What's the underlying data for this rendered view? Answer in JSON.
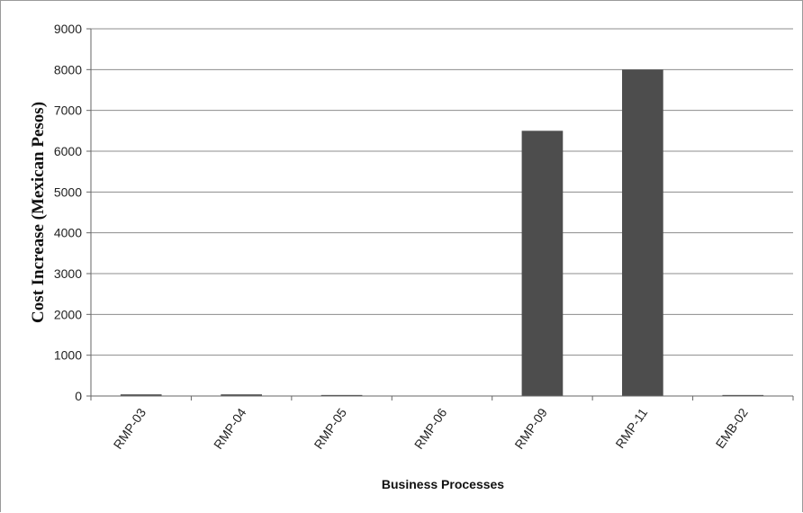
{
  "chart_data": {
    "type": "bar",
    "categories": [
      "RMP-03",
      "RMP-04",
      "RMP-05",
      "RMP-06",
      "RMP-09",
      "RMP-11",
      "EMB-02"
    ],
    "series": [
      {
        "values": [
          40,
          40,
          25,
          0,
          6500,
          8000,
          25
        ]
      }
    ],
    "xlabel": "Business Processes",
    "ylabel": "Cost  Increase (Mexican Pesos)",
    "ylim": [
      0,
      9000
    ],
    "yticks": [
      0,
      1000,
      2000,
      3000,
      4000,
      5000,
      6000,
      7000,
      8000,
      9000
    ],
    "grid": true,
    "legend": "none",
    "bar_color": "#4d4d4d",
    "grid_color": "#8c8c8c"
  }
}
